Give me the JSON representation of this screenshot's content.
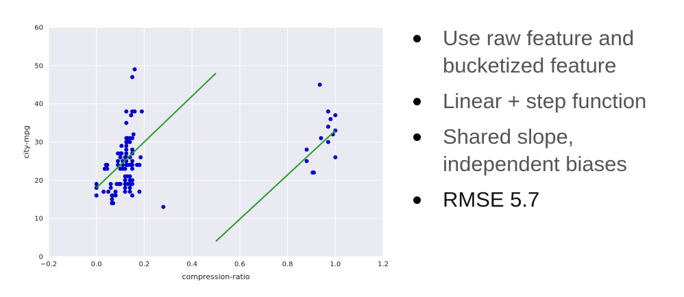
{
  "chart_data": {
    "type": "scatter",
    "xlabel": "compression-ratio",
    "ylabel": "city-mpg",
    "xlim": [
      -0.2,
      1.2
    ],
    "ylim": [
      0,
      60
    ],
    "xticks": [
      "−0.2",
      "0.0",
      "0.2",
      "0.4",
      "0.6",
      "0.8",
      "1.0",
      "1.2"
    ],
    "xtick_values": [
      -0.2,
      0.0,
      0.2,
      0.4,
      0.6,
      0.8,
      1.0,
      1.2
    ],
    "yticks": [
      "0",
      "10",
      "20",
      "30",
      "40",
      "50",
      "60"
    ],
    "ytick_values": [
      0,
      10,
      20,
      30,
      40,
      50,
      60
    ],
    "grid": true,
    "colors": {
      "points": "#0000cc",
      "lines": "#2a9a2a",
      "background": "#eaeaf2",
      "grid": "#ffffff"
    },
    "points": [
      [
        0.0,
        19
      ],
      [
        0.0,
        18
      ],
      [
        0.0,
        16
      ],
      [
        0.03,
        17
      ],
      [
        0.035,
        23
      ],
      [
        0.04,
        24
      ],
      [
        0.045,
        23
      ],
      [
        0.045,
        24
      ],
      [
        0.05,
        17
      ],
      [
        0.06,
        19
      ],
      [
        0.06,
        18
      ],
      [
        0.065,
        16
      ],
      [
        0.065,
        15
      ],
      [
        0.065,
        14
      ],
      [
        0.07,
        16
      ],
      [
        0.07,
        14
      ],
      [
        0.08,
        17
      ],
      [
        0.08,
        16
      ],
      [
        0.085,
        19
      ],
      [
        0.09,
        24
      ],
      [
        0.09,
        25
      ],
      [
        0.09,
        27
      ],
      [
        0.095,
        19
      ],
      [
        0.1,
        26
      ],
      [
        0.1,
        27
      ],
      [
        0.1,
        23
      ],
      [
        0.1,
        19
      ],
      [
        0.105,
        29
      ],
      [
        0.105,
        27
      ],
      [
        0.11,
        24
      ],
      [
        0.11,
        25
      ],
      [
        0.11,
        23
      ],
      [
        0.12,
        19
      ],
      [
        0.12,
        18
      ],
      [
        0.12,
        20
      ],
      [
        0.12,
        21
      ],
      [
        0.12,
        17
      ],
      [
        0.12,
        26
      ],
      [
        0.12,
        23
      ],
      [
        0.125,
        38
      ],
      [
        0.125,
        35
      ],
      [
        0.125,
        31
      ],
      [
        0.125,
        30
      ],
      [
        0.125,
        29
      ],
      [
        0.125,
        28
      ],
      [
        0.125,
        27
      ],
      [
        0.125,
        26
      ],
      [
        0.125,
        25
      ],
      [
        0.125,
        24
      ],
      [
        0.13,
        30
      ],
      [
        0.13,
        31
      ],
      [
        0.13,
        24
      ],
      [
        0.13,
        21
      ],
      [
        0.13,
        19
      ],
      [
        0.14,
        31
      ],
      [
        0.14,
        30
      ],
      [
        0.14,
        26
      ],
      [
        0.14,
        24
      ],
      [
        0.14,
        20
      ],
      [
        0.14,
        19
      ],
      [
        0.14,
        18
      ],
      [
        0.14,
        17
      ],
      [
        0.14,
        21
      ],
      [
        0.145,
        37
      ],
      [
        0.145,
        24
      ],
      [
        0.15,
        31
      ],
      [
        0.15,
        28
      ],
      [
        0.15,
        27
      ],
      [
        0.15,
        25
      ],
      [
        0.15,
        24
      ],
      [
        0.15,
        23
      ],
      [
        0.15,
        20
      ],
      [
        0.15,
        19
      ],
      [
        0.15,
        16
      ],
      [
        0.15,
        38
      ],
      [
        0.15,
        47
      ],
      [
        0.155,
        32
      ],
      [
        0.16,
        49
      ],
      [
        0.16,
        38
      ],
      [
        0.17,
        24
      ],
      [
        0.18,
        24
      ],
      [
        0.18,
        17
      ],
      [
        0.185,
        26
      ],
      [
        0.19,
        38
      ],
      [
        0.28,
        13
      ],
      [
        0.88,
        28
      ],
      [
        0.88,
        25
      ],
      [
        0.905,
        22
      ],
      [
        0.91,
        22
      ],
      [
        0.935,
        45
      ],
      [
        0.94,
        31
      ],
      [
        0.97,
        38
      ],
      [
        0.97,
        34
      ],
      [
        0.97,
        30
      ],
      [
        0.98,
        36
      ],
      [
        0.99,
        32
      ],
      [
        1.0,
        37
      ],
      [
        1.0,
        33
      ],
      [
        1.0,
        26
      ]
    ],
    "lines": [
      {
        "x": [
          0.0,
          0.5
        ],
        "y": [
          18,
          48
        ]
      },
      {
        "x": [
          0.5,
          1.0
        ],
        "y": [
          4,
          33
        ]
      }
    ]
  },
  "bullets": [
    {
      "text": "Use raw feature and bucketized feature",
      "style": "normal"
    },
    {
      "text": "Linear + step function",
      "style": "normal"
    },
    {
      "text": "Shared slope, independent biases",
      "style": "normal"
    },
    {
      "text": "RMSE 5.7",
      "style": "dark"
    }
  ]
}
